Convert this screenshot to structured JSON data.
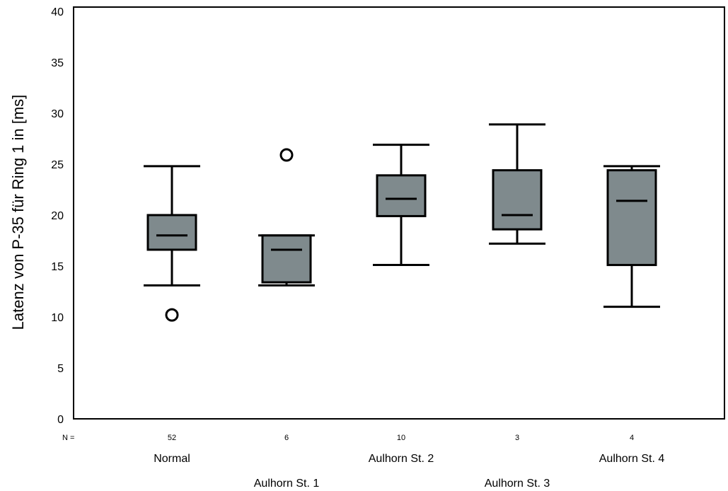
{
  "chart_data": {
    "type": "box",
    "ylabel": "Latenz von P-35 für Ring 1 in [ms]",
    "xlabel": "",
    "ylim": [
      0,
      40
    ],
    "yticks": [
      0,
      5,
      10,
      15,
      20,
      25,
      30,
      35,
      40
    ],
    "grid": false,
    "n_prefix": "N =",
    "colors": {
      "box_fill": "#7f8a8d",
      "stroke": "#000000"
    },
    "categories": [
      "Normal",
      "Aulhorn St. 1",
      "Aulhorn St. 2",
      "Aulhorn St. 3",
      "Aulhorn St. 4"
    ],
    "n": [
      "52",
      "6",
      "10",
      "3",
      "4"
    ],
    "boxes": [
      {
        "min": 13.1,
        "q1": 16.6,
        "median": 18.0,
        "q3": 20.0,
        "max": 24.8,
        "outliers": [
          10.2
        ]
      },
      {
        "min": 13.1,
        "q1": 13.4,
        "median": 16.6,
        "q3": 18.0,
        "max": 18.0,
        "outliers": [
          25.9
        ]
      },
      {
        "min": 15.1,
        "q1": 19.9,
        "median": 21.6,
        "q3": 23.9,
        "max": 26.9,
        "outliers": []
      },
      {
        "min": 17.2,
        "q1": 18.6,
        "median": 20.0,
        "q3": 24.4,
        "max": 28.9,
        "outliers": []
      },
      {
        "min": 11.0,
        "q1": 15.1,
        "median": 21.4,
        "q3": 24.4,
        "max": 24.8,
        "outliers": []
      }
    ]
  }
}
